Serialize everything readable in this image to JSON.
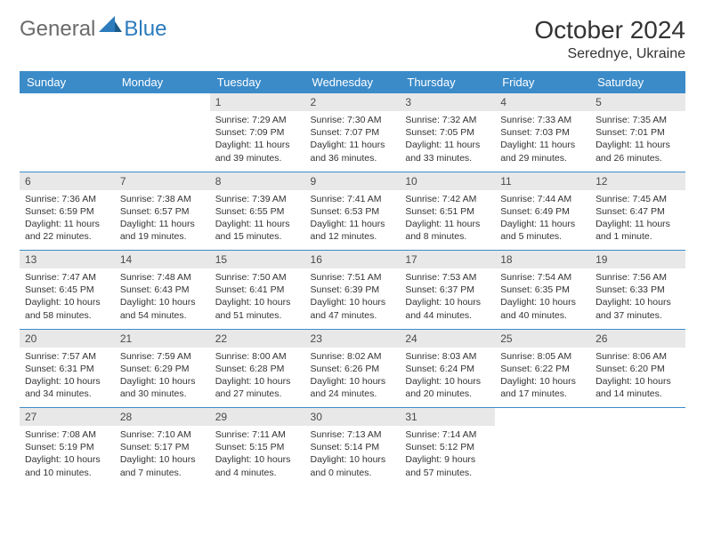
{
  "brand": {
    "part1": "General",
    "part2": "Blue"
  },
  "title": "October 2024",
  "location": "Serednye, Ukraine",
  "colors": {
    "header_bg": "#3b8bc9",
    "header_text": "#ffffff",
    "daynum_bg": "#e8e8e8",
    "rule": "#3b8bc9",
    "text": "#333333",
    "logo_gray": "#6b6b6b",
    "logo_blue": "#2b7bbd"
  },
  "day_names": [
    "Sunday",
    "Monday",
    "Tuesday",
    "Wednesday",
    "Thursday",
    "Friday",
    "Saturday"
  ],
  "weeks": [
    [
      null,
      null,
      {
        "n": "1",
        "sr": "Sunrise: 7:29 AM",
        "ss": "Sunset: 7:09 PM",
        "dl": "Daylight: 11 hours and 39 minutes."
      },
      {
        "n": "2",
        "sr": "Sunrise: 7:30 AM",
        "ss": "Sunset: 7:07 PM",
        "dl": "Daylight: 11 hours and 36 minutes."
      },
      {
        "n": "3",
        "sr": "Sunrise: 7:32 AM",
        "ss": "Sunset: 7:05 PM",
        "dl": "Daylight: 11 hours and 33 minutes."
      },
      {
        "n": "4",
        "sr": "Sunrise: 7:33 AM",
        "ss": "Sunset: 7:03 PM",
        "dl": "Daylight: 11 hours and 29 minutes."
      },
      {
        "n": "5",
        "sr": "Sunrise: 7:35 AM",
        "ss": "Sunset: 7:01 PM",
        "dl": "Daylight: 11 hours and 26 minutes."
      }
    ],
    [
      {
        "n": "6",
        "sr": "Sunrise: 7:36 AM",
        "ss": "Sunset: 6:59 PM",
        "dl": "Daylight: 11 hours and 22 minutes."
      },
      {
        "n": "7",
        "sr": "Sunrise: 7:38 AM",
        "ss": "Sunset: 6:57 PM",
        "dl": "Daylight: 11 hours and 19 minutes."
      },
      {
        "n": "8",
        "sr": "Sunrise: 7:39 AM",
        "ss": "Sunset: 6:55 PM",
        "dl": "Daylight: 11 hours and 15 minutes."
      },
      {
        "n": "9",
        "sr": "Sunrise: 7:41 AM",
        "ss": "Sunset: 6:53 PM",
        "dl": "Daylight: 11 hours and 12 minutes."
      },
      {
        "n": "10",
        "sr": "Sunrise: 7:42 AM",
        "ss": "Sunset: 6:51 PM",
        "dl": "Daylight: 11 hours and 8 minutes."
      },
      {
        "n": "11",
        "sr": "Sunrise: 7:44 AM",
        "ss": "Sunset: 6:49 PM",
        "dl": "Daylight: 11 hours and 5 minutes."
      },
      {
        "n": "12",
        "sr": "Sunrise: 7:45 AM",
        "ss": "Sunset: 6:47 PM",
        "dl": "Daylight: 11 hours and 1 minute."
      }
    ],
    [
      {
        "n": "13",
        "sr": "Sunrise: 7:47 AM",
        "ss": "Sunset: 6:45 PM",
        "dl": "Daylight: 10 hours and 58 minutes."
      },
      {
        "n": "14",
        "sr": "Sunrise: 7:48 AM",
        "ss": "Sunset: 6:43 PM",
        "dl": "Daylight: 10 hours and 54 minutes."
      },
      {
        "n": "15",
        "sr": "Sunrise: 7:50 AM",
        "ss": "Sunset: 6:41 PM",
        "dl": "Daylight: 10 hours and 51 minutes."
      },
      {
        "n": "16",
        "sr": "Sunrise: 7:51 AM",
        "ss": "Sunset: 6:39 PM",
        "dl": "Daylight: 10 hours and 47 minutes."
      },
      {
        "n": "17",
        "sr": "Sunrise: 7:53 AM",
        "ss": "Sunset: 6:37 PM",
        "dl": "Daylight: 10 hours and 44 minutes."
      },
      {
        "n": "18",
        "sr": "Sunrise: 7:54 AM",
        "ss": "Sunset: 6:35 PM",
        "dl": "Daylight: 10 hours and 40 minutes."
      },
      {
        "n": "19",
        "sr": "Sunrise: 7:56 AM",
        "ss": "Sunset: 6:33 PM",
        "dl": "Daylight: 10 hours and 37 minutes."
      }
    ],
    [
      {
        "n": "20",
        "sr": "Sunrise: 7:57 AM",
        "ss": "Sunset: 6:31 PM",
        "dl": "Daylight: 10 hours and 34 minutes."
      },
      {
        "n": "21",
        "sr": "Sunrise: 7:59 AM",
        "ss": "Sunset: 6:29 PM",
        "dl": "Daylight: 10 hours and 30 minutes."
      },
      {
        "n": "22",
        "sr": "Sunrise: 8:00 AM",
        "ss": "Sunset: 6:28 PM",
        "dl": "Daylight: 10 hours and 27 minutes."
      },
      {
        "n": "23",
        "sr": "Sunrise: 8:02 AM",
        "ss": "Sunset: 6:26 PM",
        "dl": "Daylight: 10 hours and 24 minutes."
      },
      {
        "n": "24",
        "sr": "Sunrise: 8:03 AM",
        "ss": "Sunset: 6:24 PM",
        "dl": "Daylight: 10 hours and 20 minutes."
      },
      {
        "n": "25",
        "sr": "Sunrise: 8:05 AM",
        "ss": "Sunset: 6:22 PM",
        "dl": "Daylight: 10 hours and 17 minutes."
      },
      {
        "n": "26",
        "sr": "Sunrise: 8:06 AM",
        "ss": "Sunset: 6:20 PM",
        "dl": "Daylight: 10 hours and 14 minutes."
      }
    ],
    [
      {
        "n": "27",
        "sr": "Sunrise: 7:08 AM",
        "ss": "Sunset: 5:19 PM",
        "dl": "Daylight: 10 hours and 10 minutes."
      },
      {
        "n": "28",
        "sr": "Sunrise: 7:10 AM",
        "ss": "Sunset: 5:17 PM",
        "dl": "Daylight: 10 hours and 7 minutes."
      },
      {
        "n": "29",
        "sr": "Sunrise: 7:11 AM",
        "ss": "Sunset: 5:15 PM",
        "dl": "Daylight: 10 hours and 4 minutes."
      },
      {
        "n": "30",
        "sr": "Sunrise: 7:13 AM",
        "ss": "Sunset: 5:14 PM",
        "dl": "Daylight: 10 hours and 0 minutes."
      },
      {
        "n": "31",
        "sr": "Sunrise: 7:14 AM",
        "ss": "Sunset: 5:12 PM",
        "dl": "Daylight: 9 hours and 57 minutes."
      },
      null,
      null
    ]
  ]
}
